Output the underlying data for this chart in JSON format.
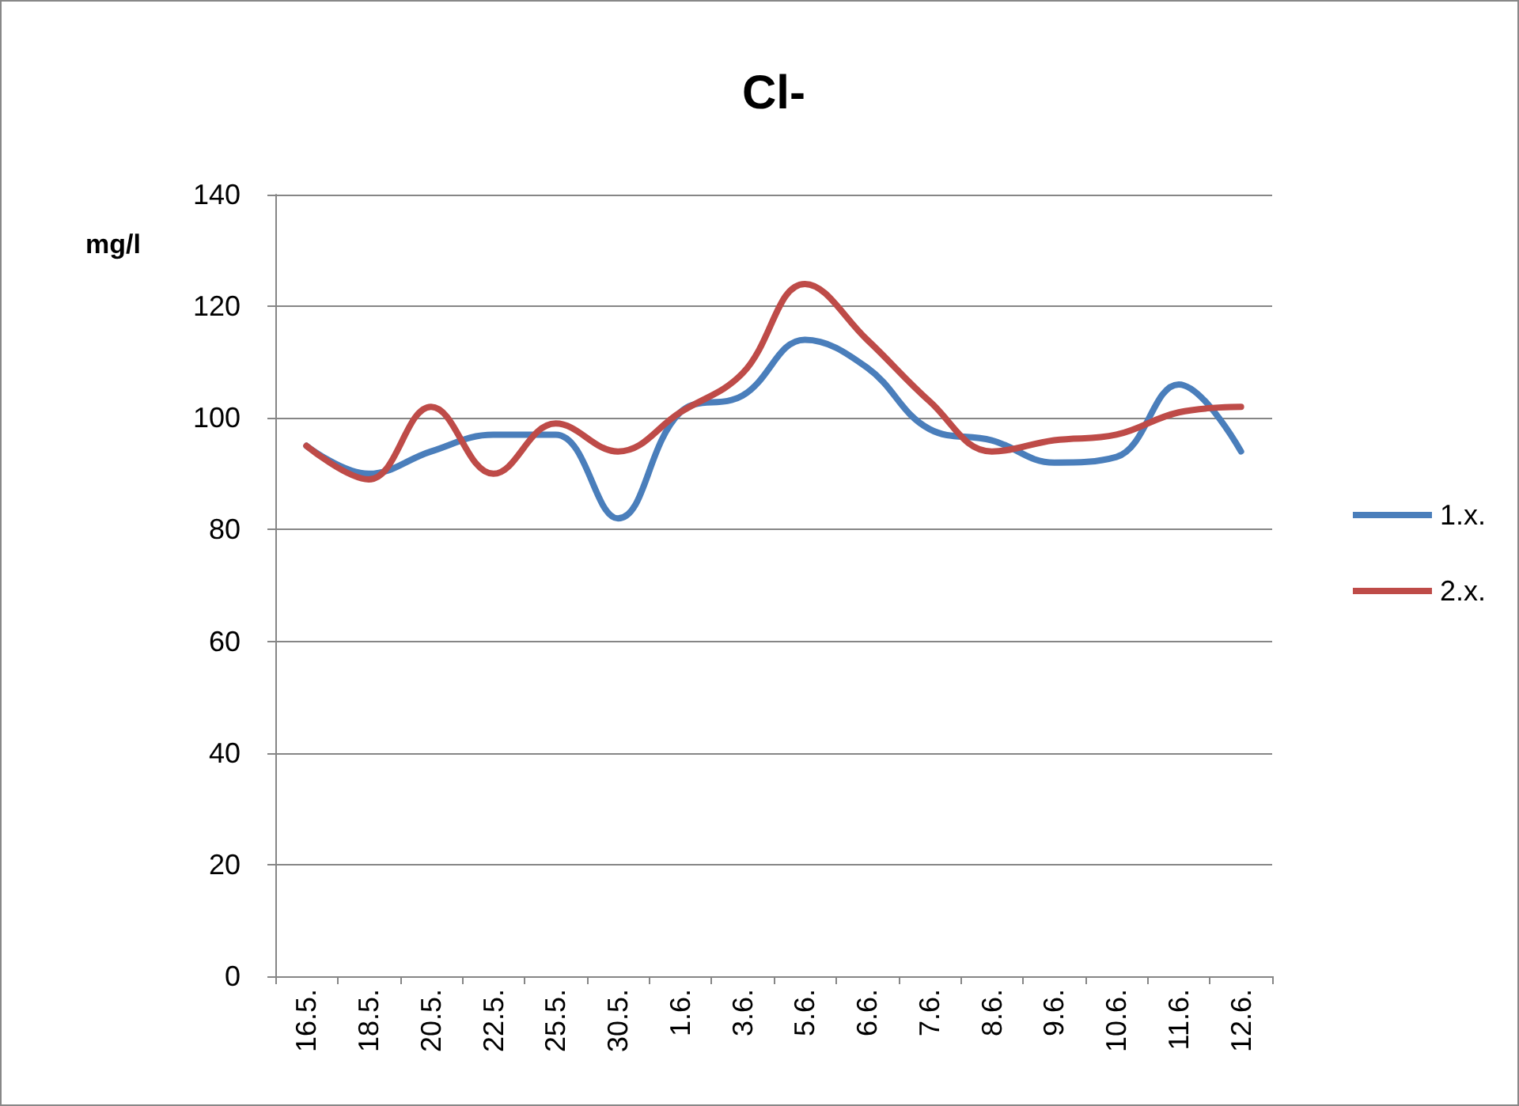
{
  "chart_data": {
    "type": "line",
    "title": "Cl-",
    "ylabel": "mg/l",
    "categories": [
      "16.5.",
      "18.5.",
      "20.5.",
      "22.5.",
      "25.5.",
      "30.5.",
      "1.6.",
      "3.6.",
      "5.6.",
      "6.6.",
      "7.6.",
      "8.6.",
      "9.6.",
      "10.6.",
      "11.6.",
      "12.6."
    ],
    "series": [
      {
        "name": "1.x.",
        "color": "#4a7ebb",
        "values": [
          95,
          90,
          94,
          97,
          97,
          82,
          101,
          104,
          114,
          109,
          98,
          96,
          92,
          93,
          106,
          94
        ]
      },
      {
        "name": "2.x.",
        "color": "#be4b48",
        "values": [
          95,
          89,
          102,
          90,
          99,
          94,
          101,
          108,
          124,
          114,
          103,
          94,
          96,
          97,
          101,
          102
        ]
      }
    ],
    "ylim": [
      0,
      140
    ],
    "yticks": [
      0,
      20,
      40,
      60,
      80,
      100,
      120,
      140
    ],
    "grid": "y",
    "legend": "right",
    "marker": "none",
    "line_style": "solid"
  }
}
